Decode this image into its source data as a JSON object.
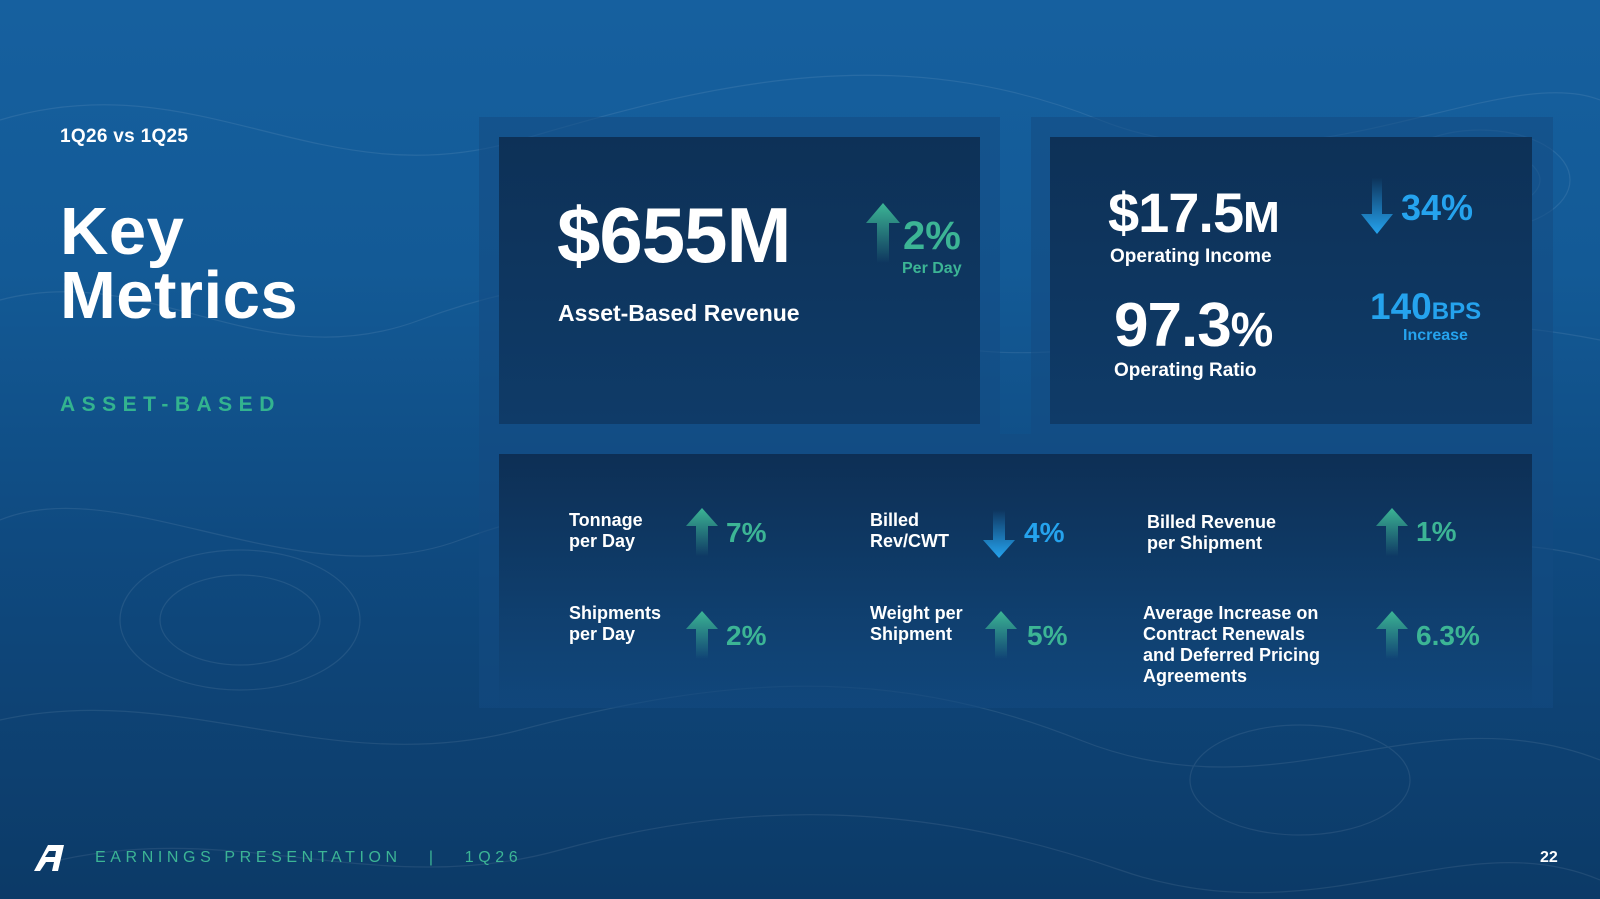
{
  "header": {
    "comparison": "1Q26 vs 1Q25",
    "title_line1": "Key",
    "title_line2": "Metrics",
    "section": "ASSET-BASED"
  },
  "revenue_card": {
    "value": "$655M",
    "change": "2%",
    "change_note": "Per Day",
    "label": "Asset-Based Revenue"
  },
  "income_card": {
    "operating_income_value": "$17.5",
    "operating_income_unit": "M",
    "operating_income_label": "Operating Income",
    "operating_income_change": "34%",
    "operating_ratio_value": "97.3",
    "operating_ratio_unit": "%",
    "operating_ratio_label": "Operating Ratio",
    "bps_value": "140",
    "bps_unit": "BPS",
    "bps_note": "Increase"
  },
  "metrics": [
    {
      "label_line1": "Tonnage",
      "label_line2": "per Day",
      "value": "7%",
      "direction": "up"
    },
    {
      "label_line1": "Billed",
      "label_line2": "Rev/CWT",
      "value": "4%",
      "direction": "down"
    },
    {
      "label_line1": "Billed Revenue",
      "label_line2": "per Shipment",
      "value": "1%",
      "direction": "up"
    },
    {
      "label_line1": "Shipments",
      "label_line2": "per Day",
      "value": "2%",
      "direction": "up"
    },
    {
      "label_line1": "Weight per",
      "label_line2": "Shipment",
      "value": "5%",
      "direction": "up"
    },
    {
      "label_line1": "Average Increase on",
      "label_line2": "Contract Renewals",
      "label_line3": "and Deferred Pricing",
      "label_line4": "Agreements",
      "value": "6.3%",
      "direction": "up"
    }
  ],
  "footer": {
    "logo": "A",
    "text": "EARNINGS PRESENTATION   |   1Q26",
    "page": "22"
  },
  "colors": {
    "teal": "#3cb595",
    "blue": "#25a3ee",
    "background": "#135a96"
  }
}
